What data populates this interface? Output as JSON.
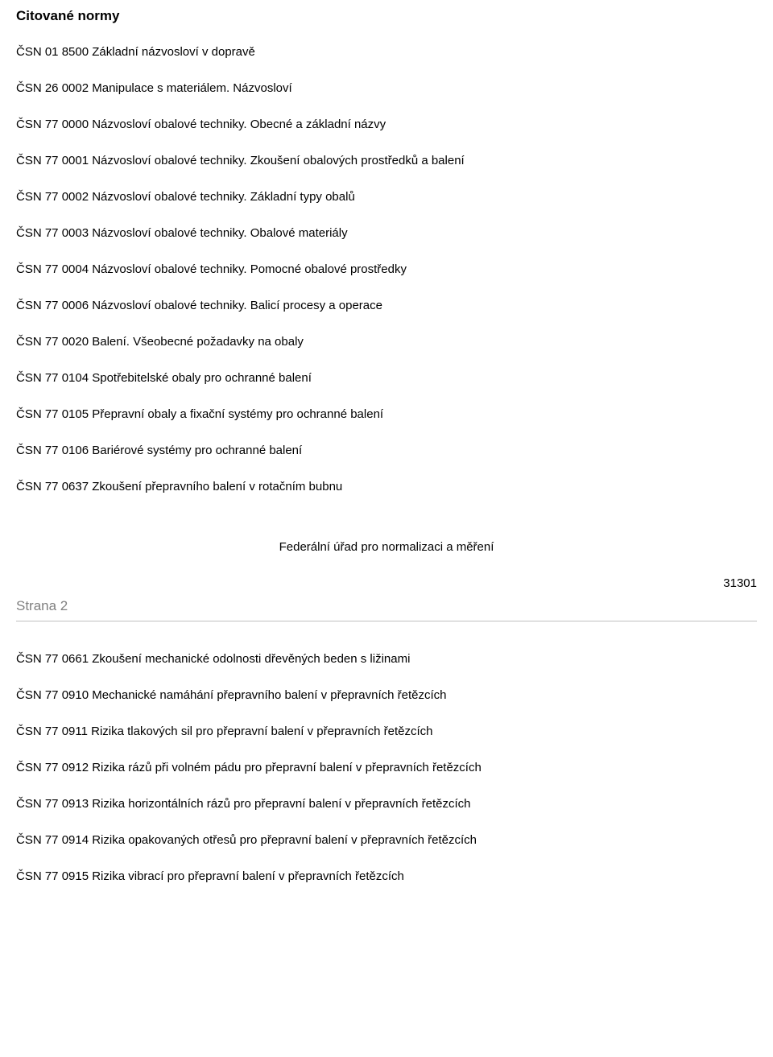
{
  "heading": "Citované normy",
  "norms_top": [
    "ČSN 01 8500 Základní názvosloví v dopravě",
    "ČSN 26 0002 Manipulace s materiálem. Názvosloví",
    "ČSN 77 0000 Názvosloví obalové techniky. Obecné a základní názvy",
    "ČSN 77 0001 Názvosloví obalové techniky. Zkoušení obalových prostředků a balení",
    "ČSN 77 0002 Názvosloví obalové techniky. Základní typy obalů",
    "ČSN 77 0003 Názvosloví obalové techniky. Obalové materiály",
    "ČSN 77 0004 Názvosloví obalové techniky. Pomocné obalové prostředky",
    "ČSN 77 0006 Názvosloví obalové techniky. Balicí procesy a operace",
    "ČSN 77 0020 Balení. Všeobecné požadavky na obaly",
    "ČSN 77 0104 Spotřebitelské obaly pro ochranné balení",
    "ČSN 77 0105 Přepravní obaly a fixační systémy pro ochranné balení",
    "ČSN 77 0106 Bariérové systémy pro ochranné balení",
    "ČSN 77 0637 Zkoušení přepravního balení v rotačním bubnu"
  ],
  "center_text": "Federální úřad pro normalizaci a měření",
  "right_number": "31301",
  "page_label": "Strana 2",
  "norms_bottom": [
    "ČSN 77 0661 Zkoušení mechanické odolnosti dřevěných beden s ližinami",
    "ČSN 77 0910 Mechanické namáhání přepravního balení v přepravních řetězcích",
    "ČSN 77 0911 Rizika tlakových sil pro přepravní balení v přepravních řetězcích",
    "ČSN 77 0912 Rizika rázů při volném pádu pro přepravní balení v přepravních řetězcích",
    "ČSN 77 0913 Rizika horizontálních rázů pro přepravní balení v přepravních řetězcích",
    "ČSN 77 0914 Rizika opakovaných otřesů pro přepravní balení v přepravních řetězcích",
    "ČSN 77 0915 Rizika vibrací pro přepravní balení v přepravních řetězcích"
  ]
}
